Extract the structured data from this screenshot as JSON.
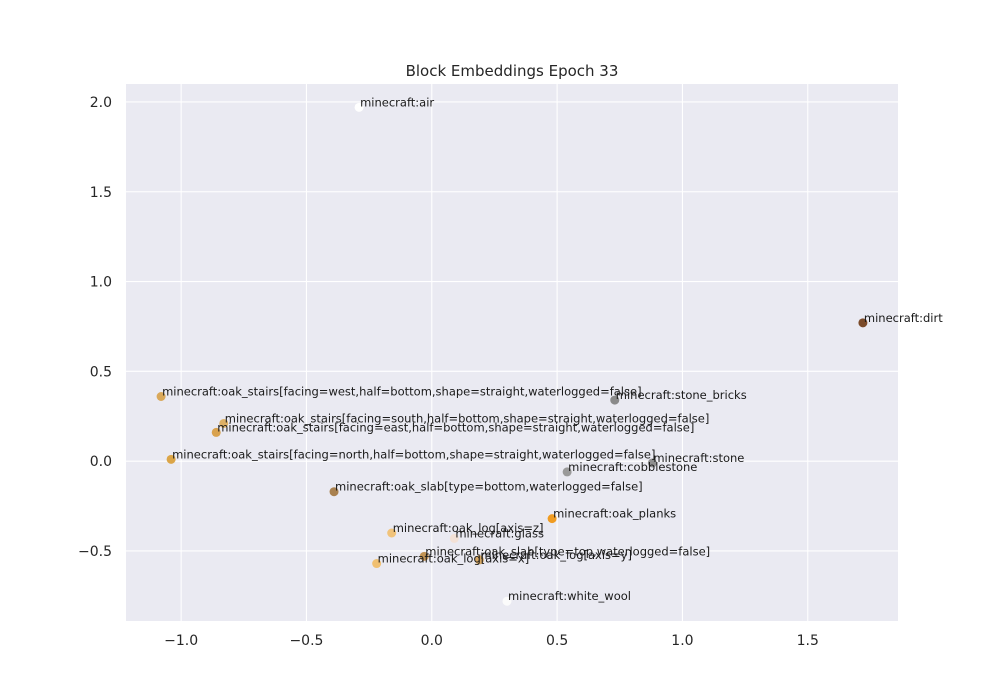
{
  "chart_data": {
    "type": "scatter",
    "title": "Block Embeddings Epoch 33",
    "xlabel": "",
    "ylabel": "",
    "xlim": [
      -1.22,
      1.86
    ],
    "ylim": [
      -0.89,
      2.1
    ],
    "x_ticks": [
      -1.0,
      -0.5,
      0.0,
      0.5,
      1.0,
      1.5
    ],
    "x_tick_labels": [
      "−1.0",
      "−0.5",
      "0.0",
      "0.5",
      "1.0",
      "1.5"
    ],
    "y_ticks": [
      -0.5,
      0.0,
      0.5,
      1.0,
      1.5,
      2.0
    ],
    "y_tick_labels": [
      "−0.5",
      "0.0",
      "0.5",
      "1.0",
      "1.5",
      "2.0"
    ],
    "grid": true,
    "plot_background": "#eaeaf2",
    "points": [
      {
        "label": "minecraft:air",
        "x": -0.29,
        "y": 1.97,
        "color": "#ffffff"
      },
      {
        "label": "minecraft:dirt",
        "x": 1.72,
        "y": 0.77,
        "color": "#7b4b2a"
      },
      {
        "label": "minecraft:oak_stairs[facing=west,half=bottom,shape=straight,waterlogged=false]",
        "x": -1.08,
        "y": 0.36,
        "color": "#d9a85a"
      },
      {
        "label": "minecraft:stone_bricks",
        "x": 0.73,
        "y": 0.34,
        "color": "#8a8a8a"
      },
      {
        "label": "minecraft:oak_stairs[facing=south,half=bottom,shape=straight,waterlogged=false]",
        "x": -0.83,
        "y": 0.21,
        "color": "#ddb066"
      },
      {
        "label": "minecraft:oak_stairs[facing=east,half=bottom,shape=straight,waterlogged=false]",
        "x": -0.86,
        "y": 0.16,
        "color": "#d9a24e"
      },
      {
        "label": "minecraft:oak_stairs[facing=north,half=bottom,shape=straight,waterlogged=false]",
        "x": -1.04,
        "y": 0.01,
        "color": "#dba548"
      },
      {
        "label": "minecraft:stone",
        "x": 0.88,
        "y": -0.01,
        "color": "#8f8f8f"
      },
      {
        "label": "minecraft:cobblestone",
        "x": 0.54,
        "y": -0.06,
        "color": "#9a9a9a"
      },
      {
        "label": "minecraft:oak_slab[type=bottom,waterlogged=false]",
        "x": -0.39,
        "y": -0.17,
        "color": "#a9814f"
      },
      {
        "label": "minecraft:oak_planks",
        "x": 0.48,
        "y": -0.32,
        "color": "#f09c22"
      },
      {
        "label": "minecraft:oak_log[axis=z]",
        "x": -0.16,
        "y": -0.4,
        "color": "#f1c37a"
      },
      {
        "label": "minecraft:glass",
        "x": 0.09,
        "y": -0.43,
        "color": "#f3e1d6"
      },
      {
        "label": "minecraft:oak_slab[type=top,waterlogged=false]",
        "x": -0.03,
        "y": -0.53,
        "color": "#c29455"
      },
      {
        "label": "minecraft:oak_log[axis=y]",
        "x": 0.19,
        "y": -0.55,
        "color": "#d6a864"
      },
      {
        "label": "minecraft:oak_log[axis=x]",
        "x": -0.22,
        "y": -0.57,
        "color": "#f0c072"
      },
      {
        "label": "minecraft:white_wool",
        "x": 0.3,
        "y": -0.78,
        "color": "#fbfbfb"
      }
    ]
  }
}
